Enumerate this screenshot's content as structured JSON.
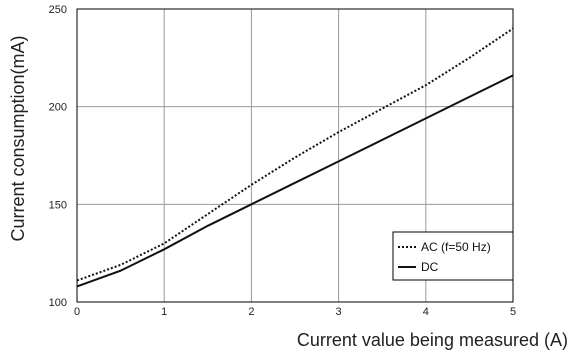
{
  "chart_data": {
    "type": "line",
    "xlabel": "Current value being measured (A)",
    "ylabel": "Current consumption(mA)",
    "xlim": [
      0,
      5
    ],
    "ylim": [
      100,
      250
    ],
    "x_ticks": [
      "0",
      "1",
      "2",
      "3",
      "4",
      "5"
    ],
    "y_ticks": [
      "100",
      "150",
      "200",
      "250"
    ],
    "grid": true,
    "legend_position": "bottom-right",
    "series": [
      {
        "name": "AC (f=50 Hz)",
        "style": "dotted",
        "color": "#111111",
        "x": [
          0,
          0.5,
          1,
          1.5,
          2,
          2.5,
          3,
          3.5,
          4,
          4.5,
          5
        ],
        "y": [
          111,
          119,
          130,
          145,
          160,
          174,
          187,
          199,
          211,
          225,
          240
        ]
      },
      {
        "name": "DC",
        "style": "solid",
        "color": "#111111",
        "x": [
          0,
          0.5,
          1,
          1.5,
          2,
          2.5,
          3,
          3.5,
          4,
          4.5,
          5
        ],
        "y": [
          108,
          116,
          127,
          139,
          150,
          161,
          172,
          183,
          194,
          205,
          216
        ]
      }
    ]
  }
}
